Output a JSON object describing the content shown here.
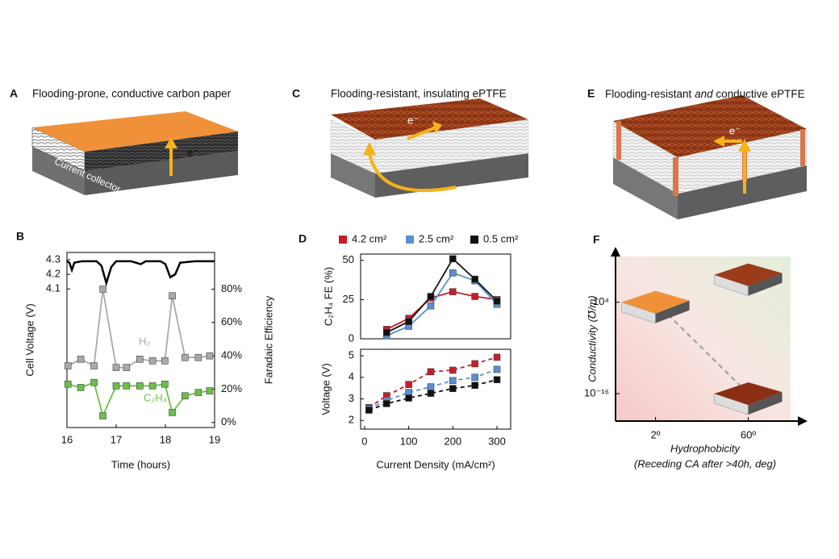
{
  "panels": [
    {
      "letter": "A",
      "title": "Flooding-prone, conductive carbon paper",
      "electron": "e⁻",
      "collector": "Current collector"
    },
    {
      "letter": "C",
      "title": "Flooding-resistant, insulating ePTFE",
      "electron": "e⁻"
    },
    {
      "letter": "E",
      "title_parts": [
        "Flooding-resistant ",
        "and",
        " conductive ePTFE"
      ],
      "electron": "e⁻"
    }
  ],
  "chart_data": [
    {
      "panel": "B",
      "type": "line",
      "xlabel": "Time (hours)",
      "ylabel": "Cell Voltage (V)",
      "y2label": "Faradaic Efficiency",
      "xlim": [
        16,
        19
      ],
      "xticks": [
        16,
        17,
        18,
        19
      ],
      "ylim": [
        3.15,
        4.35
      ],
      "yticks": [
        4.1,
        4.2,
        4.3
      ],
      "y2lim": [
        -3,
        102
      ],
      "y2ticks": [
        {
          "value": 0,
          "label": "0%"
        },
        {
          "value": 20,
          "label": "20%"
        },
        {
          "value": 40,
          "label": "40%"
        },
        {
          "value": 60,
          "label": "60%"
        },
        {
          "value": 80,
          "label": "80%"
        }
      ],
      "series": [
        {
          "color": "#000000",
          "x": [
            16,
            16.05,
            16.1,
            16.15,
            16.3,
            16.6,
            16.7,
            16.8,
            16.9,
            17.0,
            17.3,
            17.5,
            17.6,
            17.9,
            18.0,
            18.1,
            18.2,
            18.3,
            18.6,
            19
          ],
          "values": [
            4.29,
            4.28,
            4.23,
            4.28,
            4.29,
            4.29,
            4.26,
            4.14,
            4.25,
            4.29,
            4.29,
            4.27,
            4.29,
            4.29,
            4.27,
            4.18,
            4.2,
            4.28,
            4.29,
            4.29
          ]
        },
        {
          "name": "H₂",
          "color": "#a9a9a9",
          "axis": "y2",
          "marker": "square",
          "x": [
            16.02,
            16.28,
            16.55,
            16.73,
            17.0,
            17.21,
            17.48,
            17.74,
            17.99,
            18.14,
            18.4,
            18.67,
            18.9
          ],
          "values": [
            34,
            38,
            34,
            80,
            33,
            33,
            38,
            37,
            37,
            76,
            39,
            39,
            40
          ]
        },
        {
          "name": "C₂H₄",
          "color": "#6cbf4a",
          "axis": "y2",
          "marker": "square",
          "x": [
            16.02,
            16.28,
            16.55,
            16.73,
            17.0,
            17.21,
            17.48,
            17.74,
            17.99,
            18.14,
            18.4,
            18.67,
            18.9
          ],
          "values": [
            23,
            21,
            24,
            4,
            22,
            22,
            22,
            22,
            23,
            6,
            16,
            18,
            19
          ]
        }
      ]
    },
    {
      "panel": "D",
      "type": "line",
      "marker": "square",
      "ylabel": "C₂H₄ FE (%)",
      "xlim": [
        -9,
        331
      ],
      "ylim": [
        0,
        54
      ],
      "yticks": [
        0,
        25,
        50
      ],
      "x": [
        50,
        100,
        150,
        200,
        250,
        300
      ],
      "series": [
        {
          "name": "4.2 cm²",
          "color": "#c41e2a",
          "values": [
            6,
            13,
            26,
            30,
            27,
            25
          ]
        },
        {
          "name": "2.5 cm²",
          "color": "#5b8fd0",
          "values": [
            2,
            8,
            21,
            42,
            37,
            22
          ]
        },
        {
          "name": "0.5 cm²",
          "color": "#111111",
          "values": [
            4,
            11,
            27,
            51,
            38,
            24
          ]
        }
      ]
    },
    {
      "type": "line",
      "marker": "square",
      "linestyle": "dashed",
      "xlabel": "Current Density (mA/cm²)",
      "ylabel": "Voltage (V)",
      "xlim": [
        -9,
        331
      ],
      "xticks": [
        0,
        100,
        200,
        300
      ],
      "ylim": [
        1.6,
        5.3
      ],
      "yticks": [
        2,
        3,
        4,
        5
      ],
      "x": [
        10,
        50,
        100,
        150,
        200,
        250,
        300
      ],
      "series": [
        {
          "color": "#c41e2a",
          "values": [
            2.6,
            3.15,
            3.67,
            4.26,
            4.33,
            4.63,
            4.93
          ]
        },
        {
          "color": "#5b8fd0",
          "values": [
            2.55,
            2.93,
            3.3,
            3.56,
            3.85,
            4.0,
            4.37
          ]
        },
        {
          "color": "#111111",
          "values": [
            2.48,
            2.78,
            3.04,
            3.26,
            3.48,
            3.63,
            3.89
          ]
        }
      ]
    },
    {
      "panel": "F",
      "type": "scatter",
      "xlabel": "Hydrophobicity",
      "xlabel2": "(Receding CA after >40h, deg)",
      "ylabel": "Conductivity (℧/m)",
      "log_y": true,
      "xlim": [
        -23,
        89
      ],
      "xticks": [
        {
          "value": 2,
          "label": "2º"
        },
        {
          "value": 60,
          "label": "60º"
        }
      ],
      "ylim": [
        1e-22,
        100000000000000.0
      ],
      "yticks": [
        {
          "value": 10000.0,
          "label": "10⁴"
        },
        {
          "value": 1e-16,
          "label": "10⁻¹⁶"
        }
      ],
      "x": [
        2,
        60,
        60
      ],
      "values": [
        10000.0,
        1e-16,
        10000000000.0
      ],
      "colors": [
        "#f0913a",
        "#8a2f14",
        "#9a3b1a"
      ]
    }
  ]
}
